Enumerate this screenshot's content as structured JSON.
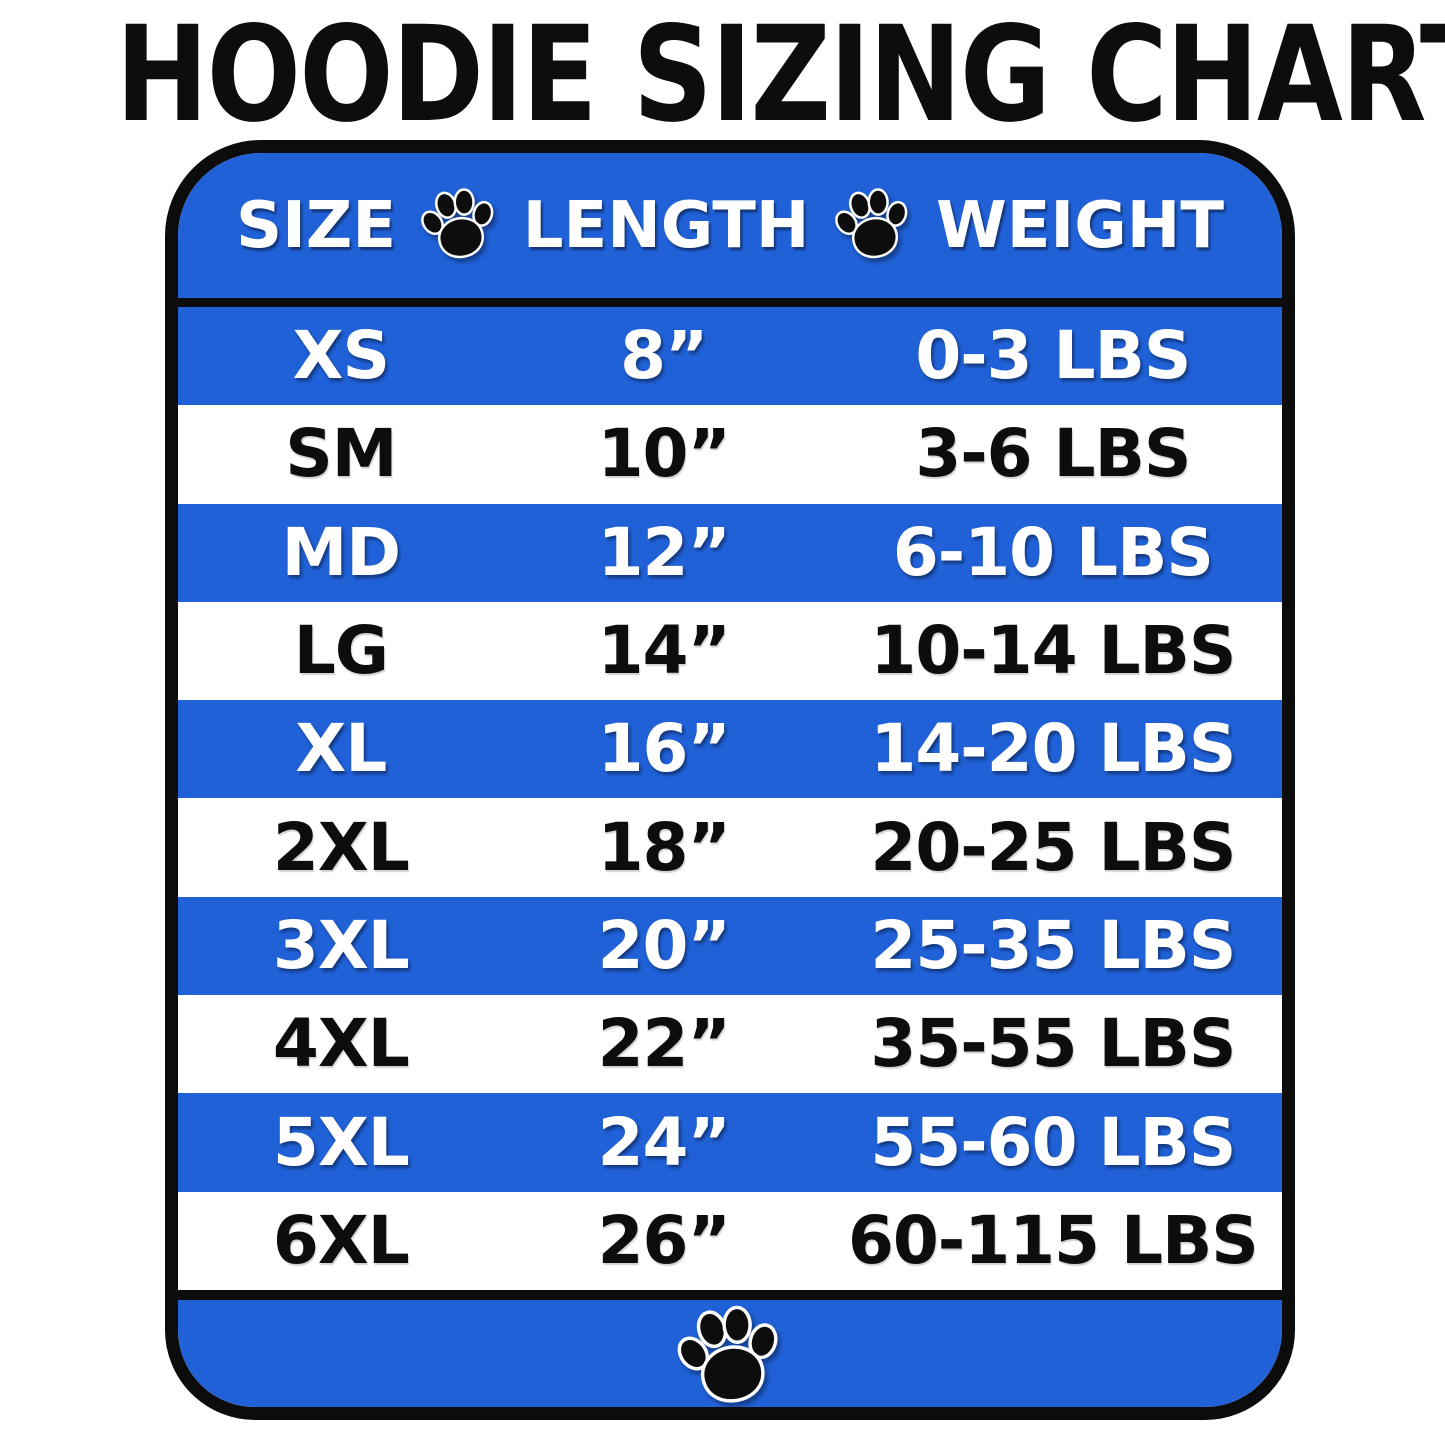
{
  "title": "HOODIE SIZING CHART",
  "colors": {
    "row_highlight_blue": "#2061d8",
    "border_black": "#0c0c0c",
    "text_white": "#ffffff",
    "text_black": "#0d0d0d"
  },
  "icons": {
    "header_separator": "paw-icon",
    "footer_decoration": "paw-icon"
  },
  "table": {
    "columns": [
      "SIZE",
      "LENGTH",
      "WEIGHT"
    ],
    "rows": [
      {
        "size": "XS",
        "length": "8”",
        "weight": "0-3 LBS",
        "highlight": true
      },
      {
        "size": "SM",
        "length": "10”",
        "weight": "3-6 LBS",
        "highlight": false
      },
      {
        "size": "MD",
        "length": "12”",
        "weight": "6-10 LBS",
        "highlight": true
      },
      {
        "size": "LG",
        "length": "14”",
        "weight": "10-14 LBS",
        "highlight": false
      },
      {
        "size": "XL",
        "length": "16”",
        "weight": "14-20 LBS",
        "highlight": true
      },
      {
        "size": "2XL",
        "length": "18”",
        "weight": "20-25 LBS",
        "highlight": false
      },
      {
        "size": "3XL",
        "length": "20”",
        "weight": "25-35 LBS",
        "highlight": true
      },
      {
        "size": "4XL",
        "length": "22”",
        "weight": "35-55 LBS",
        "highlight": false
      },
      {
        "size": "5XL",
        "length": "24”",
        "weight": "55-60 LBS",
        "highlight": true
      },
      {
        "size": "6XL",
        "length": "26”",
        "weight": "60-115 LBS",
        "highlight": false
      }
    ]
  },
  "chart_data": {
    "type": "table",
    "title": "HOODIE SIZING CHART",
    "columns": [
      "SIZE",
      "LENGTH",
      "WEIGHT"
    ],
    "rows": [
      [
        "XS",
        "8\"",
        "0-3 LBS"
      ],
      [
        "SM",
        "10\"",
        "3-6 LBS"
      ],
      [
        "MD",
        "12\"",
        "6-10 LBS"
      ],
      [
        "LG",
        "14\"",
        "10-14 LBS"
      ],
      [
        "XL",
        "16\"",
        "14-20 LBS"
      ],
      [
        "2XL",
        "18\"",
        "20-25 LBS"
      ],
      [
        "3XL",
        "20\"",
        "25-35 LBS"
      ],
      [
        "4XL",
        "22\"",
        "35-55 LBS"
      ],
      [
        "5XL",
        "24\"",
        "55-60 LBS"
      ],
      [
        "6XL",
        "26\"",
        "60-115 LBS"
      ]
    ],
    "layout_hints": {
      "row_striping": "alternating blue/white starting with blue",
      "header_background": "blue",
      "footer_background": "blue with centered paw print"
    }
  }
}
